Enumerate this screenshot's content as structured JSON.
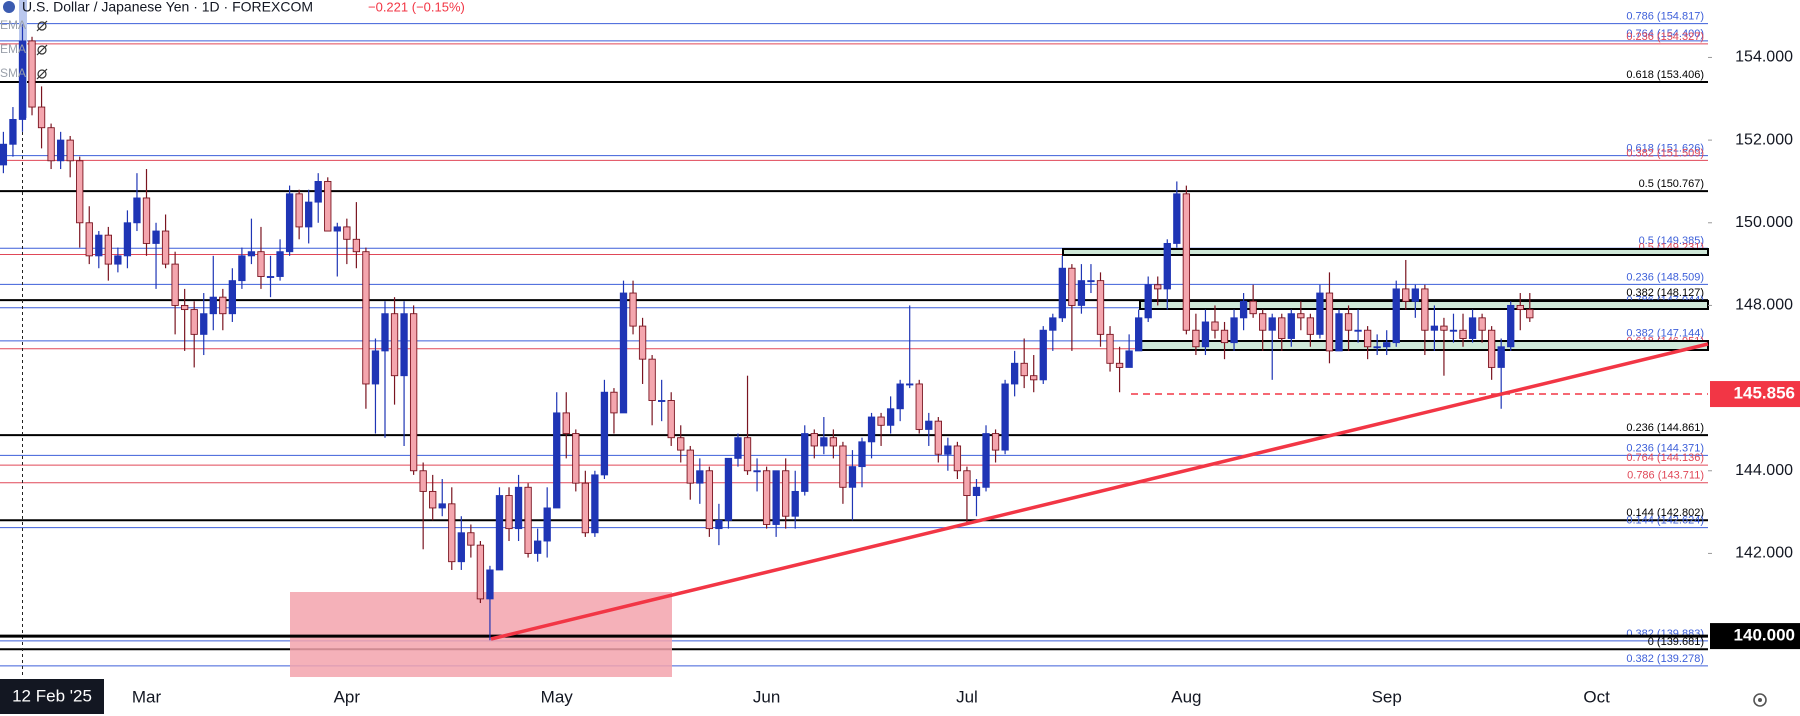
{
  "chart_data": {
    "type": "candlestick",
    "title": "U.S. Dollar / Japanese Yen · 1D · FOREXCOM",
    "change": "−0.221 (−0.15%)",
    "indicators": [
      "EMA",
      "EMA",
      "SMA"
    ],
    "up_color": "#1f35b5",
    "down_color": "#f4a6ae",
    "down_edge": "#7a1420",
    "categories": [
      null,
      null,
      "12 Feb '25",
      null,
      null,
      null,
      null,
      null,
      null,
      null,
      null,
      null,
      null,
      null,
      null,
      "Mar",
      null,
      null,
      null,
      null,
      null,
      null,
      null,
      null,
      null,
      null,
      null,
      null,
      null,
      null,
      null,
      null,
      null,
      null,
      null,
      null,
      "Apr",
      null,
      null,
      null,
      null,
      null,
      null,
      null,
      null,
      null,
      null,
      null,
      null,
      null,
      null,
      null,
      null,
      null,
      null,
      null,
      null,
      null,
      "May",
      null,
      null,
      null,
      null,
      null,
      null,
      null,
      null,
      null,
      null,
      null,
      null,
      null,
      null,
      null,
      null,
      null,
      null,
      null,
      null,
      null,
      "Jun",
      null,
      null,
      null,
      null,
      null,
      null,
      null,
      null,
      null,
      null,
      null,
      null,
      null,
      null,
      null,
      null,
      null,
      null,
      null,
      null,
      "Jul",
      null,
      null,
      null,
      null,
      null,
      null,
      null,
      null,
      null,
      null,
      null,
      null,
      null,
      null,
      null,
      null,
      null,
      null,
      null,
      null,
      null,
      null,
      "Aug",
      null,
      null,
      null,
      null,
      null,
      null,
      null,
      null,
      null,
      null,
      null,
      null,
      null,
      null,
      null,
      null,
      null,
      null,
      null,
      null,
      "Sep",
      null,
      null,
      null,
      null,
      null,
      null,
      null,
      null,
      null,
      null,
      null,
      null,
      null,
      null,
      null,
      null,
      null,
      null,
      null,
      null,
      null,
      "Oct"
    ],
    "open": [
      151.4,
      151.9,
      152.5,
      154.4,
      152.8,
      152.3,
      151.5,
      152.0,
      151.5,
      150.0,
      149.2,
      149.7,
      149.0,
      149.2,
      150.0,
      150.6,
      149.5,
      149.8,
      149.0,
      148.0,
      147.9,
      147.3,
      147.8,
      148.2,
      147.8,
      148.6,
      149.2,
      149.3,
      148.7,
      148.7,
      149.3,
      150.7,
      149.9,
      150.5,
      151.0,
      149.8,
      149.9,
      149.6,
      149.3,
      146.1,
      146.9,
      147.8,
      146.3,
      147.8,
      144.0,
      143.5,
      143.1,
      143.2,
      141.8,
      142.5,
      142.2,
      140.9,
      141.6,
      143.4,
      142.6,
      143.6,
      142.0,
      142.3,
      143.1,
      145.4,
      144.9,
      143.7,
      142.5,
      143.9,
      145.9,
      145.4,
      148.3,
      147.5,
      146.7,
      145.7,
      145.7,
      144.8,
      144.5,
      143.7,
      144.0,
      142.6,
      142.8,
      144.3,
      144.8,
      144.0,
      144.0,
      142.7,
      144.0,
      142.9,
      143.5,
      144.9,
      144.6,
      144.8,
      144.6,
      143.6,
      144.1,
      144.7,
      145.3,
      145.1,
      145.5,
      146.1,
      146.1,
      145.0,
      145.2,
      144.4,
      144.6,
      144.0,
      143.4,
      143.6,
      144.9,
      144.5,
      146.1,
      146.6,
      146.3,
      146.2,
      147.4,
      147.7,
      148.9,
      148.0,
      148.6,
      148.6,
      147.3,
      146.6,
      146.5,
      146.9,
      147.7,
      148.5,
      148.4,
      149.5,
      150.7,
      147.4,
      147.0,
      147.6,
      147.4,
      147.1,
      147.7,
      148.1,
      147.8,
      147.4,
      147.7,
      147.2,
      147.8,
      147.7,
      147.3,
      148.3,
      146.9,
      147.8,
      147.4,
      147.4,
      147.0,
      147.0,
      147.1,
      148.4,
      148.1,
      148.4,
      147.4,
      147.5,
      147.4,
      147.4,
      147.2,
      147.7,
      147.4,
      146.5,
      147.0,
      148.0,
      147.9,
      null,
      null,
      null,
      null,
      null,
      null,
      null
    ],
    "high": [
      152.2,
      152.8,
      154.8,
      154.5,
      153.3,
      152.4,
      152.2,
      152.1,
      151.6,
      150.4,
      149.8,
      149.9,
      149.4,
      150.3,
      151.2,
      151.3,
      150.0,
      150.2,
      149.3,
      148.4,
      148.1,
      148.3,
      149.2,
      148.4,
      148.9,
      149.4,
      150.1,
      149.9,
      149.2,
      149.6,
      150.9,
      150.8,
      150.8,
      151.2,
      151.1,
      150.0,
      150.1,
      150.5,
      149.4,
      147.2,
      148.1,
      148.2,
      148.1,
      148.0,
      144.2,
      143.9,
      143.8,
      143.6,
      142.9,
      142.7,
      142.3,
      141.7,
      143.6,
      143.6,
      143.9,
      143.7,
      142.6,
      143.6,
      145.9,
      145.9,
      145.0,
      144.0,
      144.0,
      146.2,
      146.0,
      148.6,
      148.6,
      147.7,
      146.8,
      146.2,
      145.9,
      145.1,
      144.6,
      144.3,
      144.1,
      143.2,
      144.3,
      144.9,
      146.3,
      144.3,
      144.1,
      144.0,
      144.3,
      144.0,
      145.1,
      145.0,
      145.3,
      145.0,
      144.7,
      144.5,
      144.8,
      145.4,
      145.4,
      145.8,
      146.2,
      148.0,
      146.2,
      145.4,
      145.3,
      144.8,
      144.7,
      144.1,
      143.8,
      145.1,
      145.0,
      146.2,
      146.9,
      147.2,
      146.8,
      147.5,
      147.8,
      149.2,
      149.0,
      149.0,
      149.0,
      148.8,
      147.5,
      147.0,
      147.3,
      147.9,
      148.7,
      148.7,
      149.6,
      151.0,
      150.9,
      147.8,
      147.9,
      148.0,
      147.6,
      147.9,
      148.3,
      148.5,
      147.9,
      147.8,
      147.8,
      147.9,
      148.1,
      147.8,
      148.5,
      148.8,
      147.9,
      148.0,
      147.9,
      147.5,
      147.3,
      147.4,
      148.6,
      149.1,
      148.5,
      148.5,
      148.0,
      147.7,
      147.8,
      147.8,
      147.9,
      147.8,
      147.5,
      147.2,
      148.1,
      148.3,
      148.3,
      null,
      null,
      null,
      null,
      null,
      null,
      null
    ],
    "low": [
      151.2,
      151.6,
      152.2,
      152.6,
      151.8,
      151.3,
      151.3,
      151.1,
      149.4,
      149.0,
      148.9,
      148.6,
      148.8,
      148.9,
      149.8,
      149.2,
      148.4,
      148.9,
      147.3,
      146.9,
      146.5,
      146.8,
      147.4,
      147.4,
      147.6,
      148.4,
      149.0,
      148.4,
      148.2,
      148.6,
      149.2,
      149.6,
      149.5,
      150.0,
      149.8,
      148.7,
      149.0,
      148.9,
      145.5,
      144.9,
      144.8,
      145.6,
      144.6,
      143.9,
      142.1,
      142.8,
      142.9,
      141.6,
      141.6,
      141.9,
      140.8,
      139.9,
      141.6,
      142.3,
      142.3,
      141.9,
      141.8,
      141.9,
      143.1,
      144.3,
      143.5,
      142.4,
      142.4,
      143.8,
      144.9,
      145.4,
      147.3,
      146.1,
      145.1,
      145.2,
      144.6,
      144.2,
      143.3,
      143.2,
      142.4,
      142.2,
      142.6,
      144.1,
      143.9,
      143.5,
      142.6,
      142.4,
      142.6,
      142.6,
      143.4,
      144.3,
      144.4,
      144.3,
      143.2,
      142.8,
      143.6,
      144.3,
      144.6,
      144.9,
      145.2,
      146.0,
      144.9,
      144.6,
      144.2,
      144.0,
      143.8,
      142.7,
      142.9,
      143.5,
      144.2,
      144.4,
      145.8,
      146.0,
      145.9,
      146.1,
      146.9,
      147.6,
      146.9,
      147.8,
      148.3,
      147.0,
      146.4,
      145.9,
      146.5,
      146.9,
      147.6,
      148.0,
      147.9,
      149.4,
      147.3,
      146.8,
      146.8,
      147.2,
      146.7,
      146.9,
      147.4,
      147.7,
      146.9,
      146.2,
      146.9,
      147.0,
      147.4,
      147.0,
      147.2,
      146.6,
      146.9,
      146.9,
      147.1,
      146.7,
      146.8,
      146.8,
      147.0,
      147.9,
      147.7,
      146.8,
      146.9,
      146.3,
      147.1,
      147.0,
      147.1,
      147.1,
      146.2,
      145.5,
      146.9,
      147.4,
      147.6,
      null,
      null,
      null,
      null,
      null,
      null,
      null
    ],
    "close": [
      151.9,
      152.5,
      154.4,
      152.8,
      152.3,
      151.5,
      152.0,
      151.5,
      150.0,
      149.2,
      149.7,
      149.0,
      149.2,
      150.0,
      150.6,
      149.5,
      149.8,
      149.0,
      148.0,
      147.9,
      147.3,
      147.8,
      148.2,
      147.8,
      148.6,
      149.2,
      149.3,
      148.7,
      148.7,
      149.3,
      150.7,
      149.9,
      150.5,
      151.0,
      149.8,
      149.9,
      149.6,
      149.3,
      146.1,
      146.9,
      147.8,
      146.3,
      147.8,
      144.0,
      143.5,
      143.1,
      143.2,
      141.8,
      142.5,
      142.2,
      140.9,
      141.6,
      143.4,
      142.6,
      143.6,
      142.0,
      142.3,
      143.1,
      145.4,
      144.9,
      143.7,
      142.5,
      143.9,
      145.9,
      145.4,
      148.3,
      147.5,
      146.7,
      145.7,
      145.7,
      144.8,
      144.5,
      143.7,
      144.0,
      142.6,
      142.8,
      144.3,
      144.8,
      144.0,
      144.0,
      142.7,
      144.0,
      142.9,
      143.5,
      144.9,
      144.6,
      144.8,
      144.6,
      143.6,
      144.1,
      144.7,
      145.3,
      145.1,
      145.5,
      146.1,
      146.1,
      145.0,
      145.2,
      144.4,
      144.6,
      144.0,
      143.4,
      143.6,
      144.9,
      144.5,
      146.1,
      146.6,
      146.3,
      146.2,
      147.4,
      147.7,
      148.9,
      148.0,
      148.6,
      148.6,
      147.3,
      146.6,
      146.5,
      146.9,
      147.7,
      148.5,
      148.4,
      149.5,
      150.7,
      147.4,
      147.0,
      147.6,
      147.4,
      147.1,
      147.7,
      148.1,
      147.8,
      147.4,
      147.7,
      147.2,
      147.8,
      147.7,
      147.3,
      148.3,
      146.9,
      147.8,
      147.4,
      147.4,
      147.0,
      147.0,
      147.1,
      148.4,
      148.1,
      148.4,
      147.4,
      147.5,
      147.4,
      147.4,
      147.2,
      147.7,
      147.4,
      146.5,
      147.0,
      148.0,
      147.9,
      147.7,
      null,
      null,
      null,
      null,
      null,
      null,
      null
    ],
    "ylim": [
      139.01,
      155.39
    ],
    "yticks": [
      {
        "value": 154,
        "label": "154.000"
      },
      {
        "value": 152,
        "label": "152.000"
      },
      {
        "value": 150,
        "label": "150.000"
      },
      {
        "value": 148,
        "label": "148.000"
      },
      {
        "value": 144,
        "label": "144.000"
      },
      {
        "value": 142,
        "label": "142.000"
      }
    ],
    "levels": [
      {
        "value": 154.817,
        "label": "0.786 (154.817)",
        "color": "#3d5fd9"
      },
      {
        "value": 154.4,
        "label": "0.764 (154.400)",
        "color": "#3d5fd9"
      },
      {
        "value": 154.327,
        "label": "0.236 (154.327)",
        "color": "#e04858"
      },
      {
        "value": 153.406,
        "label": "0.618 (153.406)",
        "color": "#000000"
      },
      {
        "value": 151.626,
        "label": "0.618 (151.626)",
        "color": "#3d5fd9"
      },
      {
        "value": 151.509,
        "label": "0.382 (151.509)",
        "color": "#e04858"
      },
      {
        "value": 150.767,
        "label": "0.5 (150.767)",
        "color": "#000000"
      },
      {
        "value": 149.385,
        "label": "0.5 (149.385)",
        "color": "#3d5fd9"
      },
      {
        "value": 149.231,
        "label": "0.5 (149.231)",
        "color": "#e04858"
      },
      {
        "value": 148.509,
        "label": "0.236 (148.509)",
        "color": "#3d5fd9"
      },
      {
        "value": 148.127,
        "label": "0.382 (148.127)",
        "color": "#000000"
      },
      {
        "value": 147.944,
        "label": "0.786 (147.944)",
        "color": "#3d5fd9"
      },
      {
        "value": 147.144,
        "label": "0.382 (147.144)",
        "color": "#3d5fd9"
      },
      {
        "value": 146.951,
        "label": "0.618 (146.951)",
        "color": "#e04858"
      },
      {
        "value": 144.861,
        "label": "0.236 (144.861)",
        "color": "#000000"
      },
      {
        "value": 144.371,
        "label": "0.236 (144.371)",
        "color": "#3d5fd9"
      },
      {
        "value": 144.136,
        "label": "0.764 (144.136)",
        "color": "#e04858"
      },
      {
        "value": 143.711,
        "label": "0.786 (143.711)",
        "color": "#e04858"
      },
      {
        "value": 142.802,
        "label": "0.144 (142.802)",
        "color": "#000000"
      },
      {
        "value": 142.624,
        "label": "0.144 (142.624)",
        "color": "#3d5fd9"
      },
      {
        "value": 139.883,
        "label": "0.382 (139.883)",
        "color": "#3d5fd9"
      },
      {
        "value": 139.681,
        "label": "0 (139.681)",
        "color": "#000000"
      },
      {
        "value": 139.278,
        "label": "0.382 (139.278)",
        "color": "#3d5fd9"
      }
    ],
    "price_markers": [
      {
        "value": 140,
        "label": "140.000",
        "color": "#000000",
        "style": "solid"
      },
      {
        "value": 145.856,
        "label": "145.856",
        "color": "#f23645",
        "style": "dashed"
      }
    ]
  }
}
